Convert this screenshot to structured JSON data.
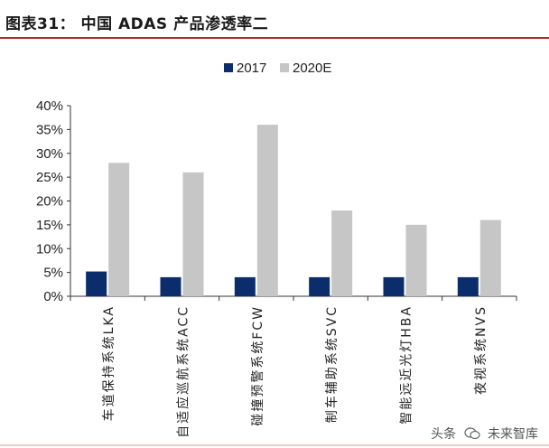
{
  "header": {
    "title": "图表31：    中国 ADAS 产品渗透率二",
    "rule_color": "#b22a2a"
  },
  "watermark": {
    "text_left": "头条",
    "icon": "wechat-like-icon",
    "text_right": "未来智库"
  },
  "chart_data": {
    "type": "bar",
    "title": "",
    "xlabel": "",
    "ylabel": "",
    "categories": [
      "车道保持系统LKA",
      "自适应巡航系统ACC",
      "碰撞预警系统FCW",
      "制车辅助系统SVC",
      "智能远近光灯HBA",
      "夜视系统NVS"
    ],
    "series": [
      {
        "name": "2017",
        "values": [
          5.2,
          4,
          4,
          4,
          4,
          4
        ],
        "color": "#0b2d6b"
      },
      {
        "name": "2020E",
        "values": [
          28,
          26,
          36,
          18,
          15,
          16
        ],
        "color": "#c6c6c6"
      }
    ],
    "ylim": [
      0,
      40
    ],
    "yticks": [
      "0%",
      "5%",
      "10%",
      "15%",
      "20%",
      "25%",
      "30%",
      "35%",
      "40%"
    ],
    "grid": false,
    "legend_position": "top-center"
  }
}
